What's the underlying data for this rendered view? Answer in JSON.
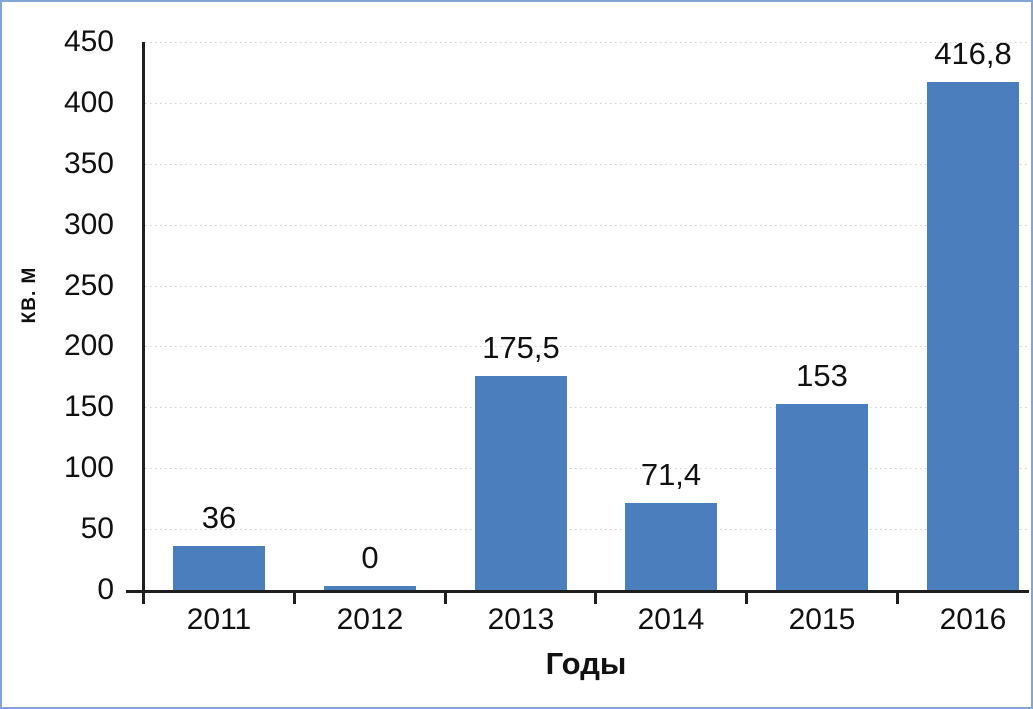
{
  "chart_data": {
    "type": "bar",
    "title": "",
    "categories": [
      "2011",
      "2012",
      "2013",
      "2014",
      "2015",
      "2016"
    ],
    "values": [
      36,
      0,
      175.5,
      71.4,
      153,
      416.8
    ],
    "value_labels": [
      "36",
      "0",
      "175,5",
      "71,4",
      "153",
      "416,8"
    ],
    "xlabel": "Годы",
    "ylabel": "кв. м",
    "ylim": [
      0,
      450
    ],
    "ytick_step": 50,
    "ytick_labels": [
      "0",
      "50",
      "100",
      "150",
      "200",
      "250",
      "300",
      "350",
      "400",
      "450"
    ],
    "grid": "horizontal-dotted",
    "legend": "none",
    "colors": {
      "bar": "#4a7ebc",
      "frame": "#82a5d6",
      "axis": "#1f1f1f",
      "gridline": "#cfcfcf",
      "text": "#111111"
    }
  }
}
